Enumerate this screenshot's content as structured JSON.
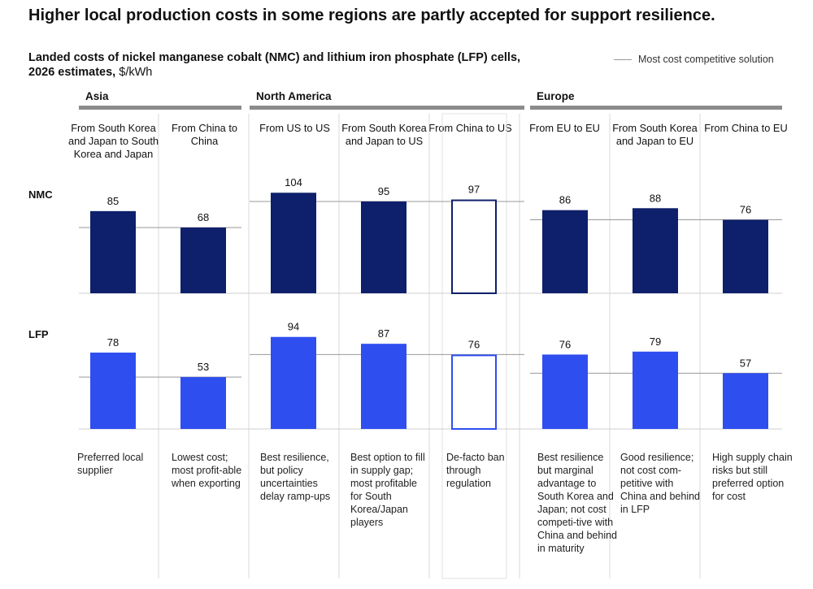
{
  "headline": "Higher local production costs in some regions are partly accepted for support resilience.",
  "subtitle_bold": "Landed costs of nickel manganese cobalt (NMC) and lithium iron phosphate (LFP) cells,",
  "subtitle_line2_bold": "2026 estimates,",
  "subtitle_unit": "$/kWh",
  "legend": {
    "label": "Most cost competitive solution",
    "color": "#999999"
  },
  "colors": {
    "nmc": "#0e1f6b",
    "lfp": "#2f4ef0",
    "outline_nmc": "#0e1f6b",
    "outline_lfp": "#2f4ef0"
  },
  "chart_data": {
    "type": "bar",
    "title": "Landed costs of nickel manganese cobalt (NMC) and lithium iron phosphate (LFP) cells, 2026 estimates, $/kWh",
    "ylabel": "$/kWh",
    "regions": [
      "Asia",
      "North America",
      "Europe"
    ],
    "categories": [
      "From South Korea and Japan to South Korea and Japan",
      "From China to China",
      "From US to US",
      "From South Korea and Japan to US",
      "From China to US",
      "From EU to EU",
      "From South Korea and Japan to EU",
      "From China to EU"
    ],
    "category_region": [
      "Asia",
      "Asia",
      "North America",
      "North America",
      "North America",
      "Europe",
      "Europe",
      "Europe"
    ],
    "series": [
      {
        "name": "NMC",
        "values": [
          85,
          68,
          104,
          95,
          97,
          86,
          88,
          76
        ],
        "hypothetical": [
          false,
          false,
          false,
          false,
          true,
          false,
          false,
          false
        ]
      },
      {
        "name": "LFP",
        "values": [
          78,
          53,
          94,
          87,
          76,
          76,
          79,
          57
        ],
        "hypothetical": [
          false,
          false,
          false,
          false,
          true,
          false,
          false,
          false
        ]
      }
    ],
    "reference_lines": {
      "NMC": {
        "Asia": 68,
        "North America": 95,
        "Europe": 76
      },
      "LFP": {
        "Asia": 53,
        "North America": 76,
        "Europe": 57
      }
    },
    "ylim": [
      0,
      110
    ]
  },
  "column_headers": [
    "From South Korea and Japan to South Korea and Japan",
    "From China to China",
    "From US to US",
    "From South Korea and Japan to US",
    "From China to US",
    "From EU to EU",
    "From South Korea and Japan to EU",
    "From China to EU"
  ],
  "notes": [
    "Preferred local supplier",
    "Lowest cost; most profit-able when exporting",
    "Best resilience, but policy uncertainties delay ramp-ups",
    "Best option to fill in supply gap; most profitable for South Korea/Japan players",
    "De-facto ban through regulation",
    "Best resilience but marginal advantage to South Korea and Japan; not cost competi-tive with China and behind in maturity",
    "Good resilience; not cost com-petitive with China and behind in LFP",
    "High supply chain risks but still preferred option for cost"
  ]
}
